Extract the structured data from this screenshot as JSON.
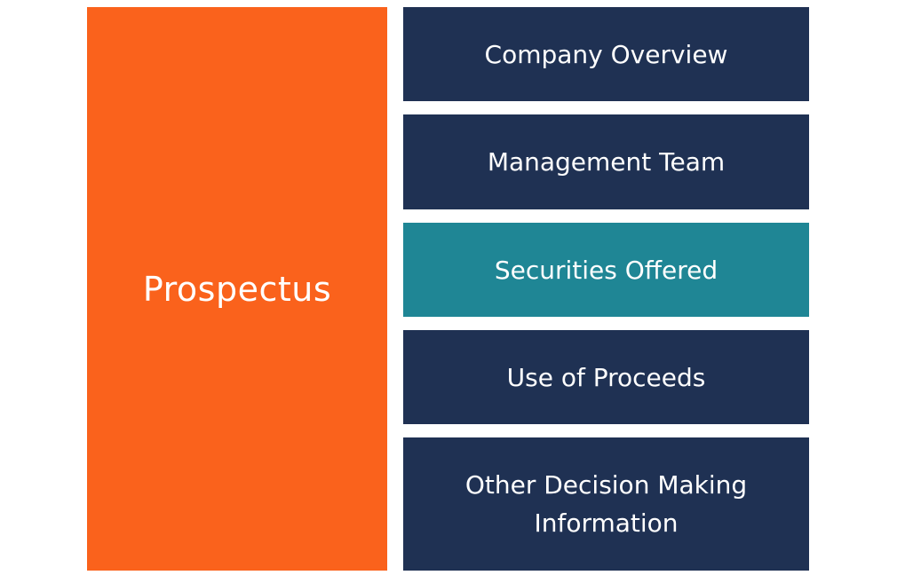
{
  "diagram": {
    "main": {
      "label": "Prospectus",
      "color": "#FA621C"
    },
    "sections": [
      {
        "label": "Company Overview",
        "color": "#1F3153",
        "highlighted": false
      },
      {
        "label": "Management Team",
        "color": "#1F3153",
        "highlighted": false
      },
      {
        "label": "Securities Offered",
        "color": "#1F8695",
        "highlighted": true
      },
      {
        "label": "Use of Proceeds",
        "color": "#1F3153",
        "highlighted": false
      },
      {
        "label": "Other Decision Making Information",
        "color": "#1F3153",
        "highlighted": false
      }
    ]
  }
}
